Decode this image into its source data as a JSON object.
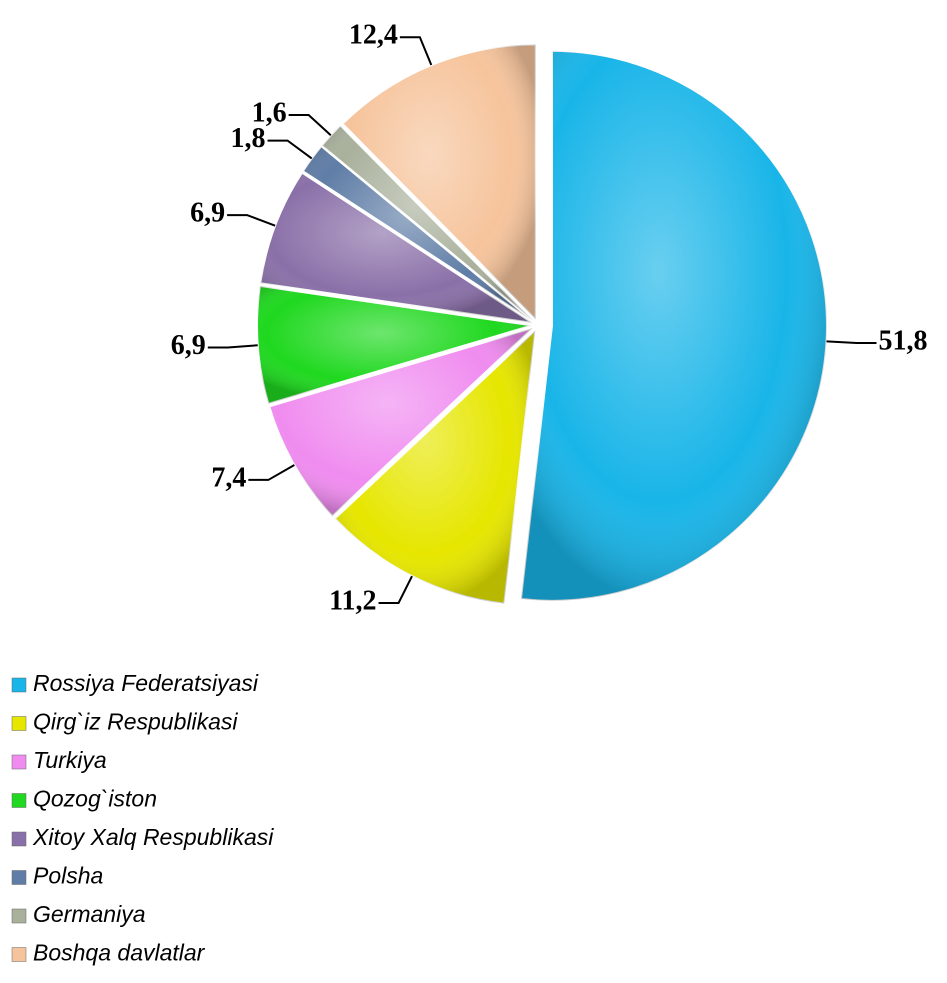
{
  "chart_data": {
    "type": "pie",
    "categories": [
      "Rossiya Federatsiyasi",
      "Qirg`iz Respublikasi",
      "Turkiya",
      "Qozog`iston",
      "Xitoy Xalq Respublikasi",
      "Polsha",
      "Germaniya",
      "Boshqa davlatlar"
    ],
    "values": [
      51.8,
      11.2,
      7.4,
      6.9,
      6.9,
      1.8,
      1.6,
      12.4
    ],
    "value_labels": [
      "51,8",
      "11,2",
      "7,4",
      "6,9",
      "6,9",
      "1,8",
      "1,6",
      "12,4"
    ],
    "colors": [
      "#19b5e8",
      "#e6e600",
      "#f08cf0",
      "#1fd81f",
      "#8a70a8",
      "#5f7da6",
      "#a9b19c",
      "#f6c49c"
    ],
    "legend": "bottom-left"
  }
}
